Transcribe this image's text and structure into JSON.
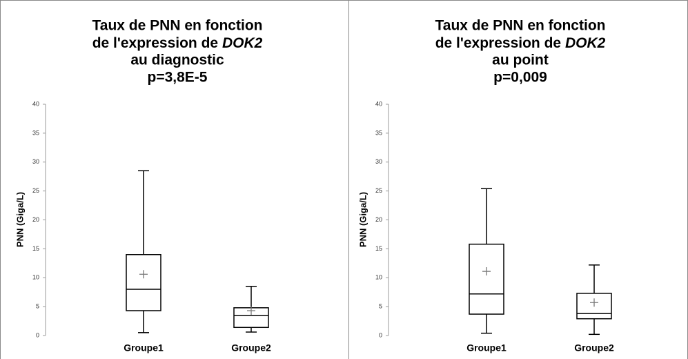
{
  "chart_data": [
    {
      "type": "box",
      "title": [
        "Taux de PNN en fonction",
        "de l'expression de",
        "DOK2",
        "au diagnostic",
        "p=3,8E-5"
      ],
      "y_label": "PNN (Giga/L)",
      "categories": [
        "Groupe1",
        "Groupe2"
      ],
      "min": [
        0.5,
        0.6
      ],
      "q1": [
        4.3,
        1.4
      ],
      "median": [
        8.0,
        3.5
      ],
      "q3": [
        14.0,
        4.8
      ],
      "max": [
        28.5,
        8.5
      ],
      "mean": [
        10.6,
        4.3
      ],
      "color": "#000000",
      "ylim": [
        0,
        40
      ],
      "yticks": [
        0,
        5,
        10,
        15,
        20,
        25,
        30,
        35,
        40
      ]
    },
    {
      "type": "box",
      "title": [
        "Taux de PNN en fonction",
        "de l'expression de",
        "DOK2",
        "au point",
        "p=0,009"
      ],
      "y_label": "PNN (Giga/L)",
      "categories": [
        "Groupe1",
        "Groupe2"
      ],
      "min": [
        0.4,
        0.2
      ],
      "q1": [
        3.7,
        2.9
      ],
      "median": [
        7.2,
        3.8
      ],
      "q3": [
        15.8,
        7.3
      ],
      "max": [
        25.4,
        12.2
      ],
      "mean": [
        11.1,
        5.7
      ],
      "color": "#000000",
      "ylim": [
        0,
        40
      ],
      "yticks": [
        0,
        5,
        10,
        15,
        20,
        25,
        30,
        35,
        40
      ]
    }
  ]
}
